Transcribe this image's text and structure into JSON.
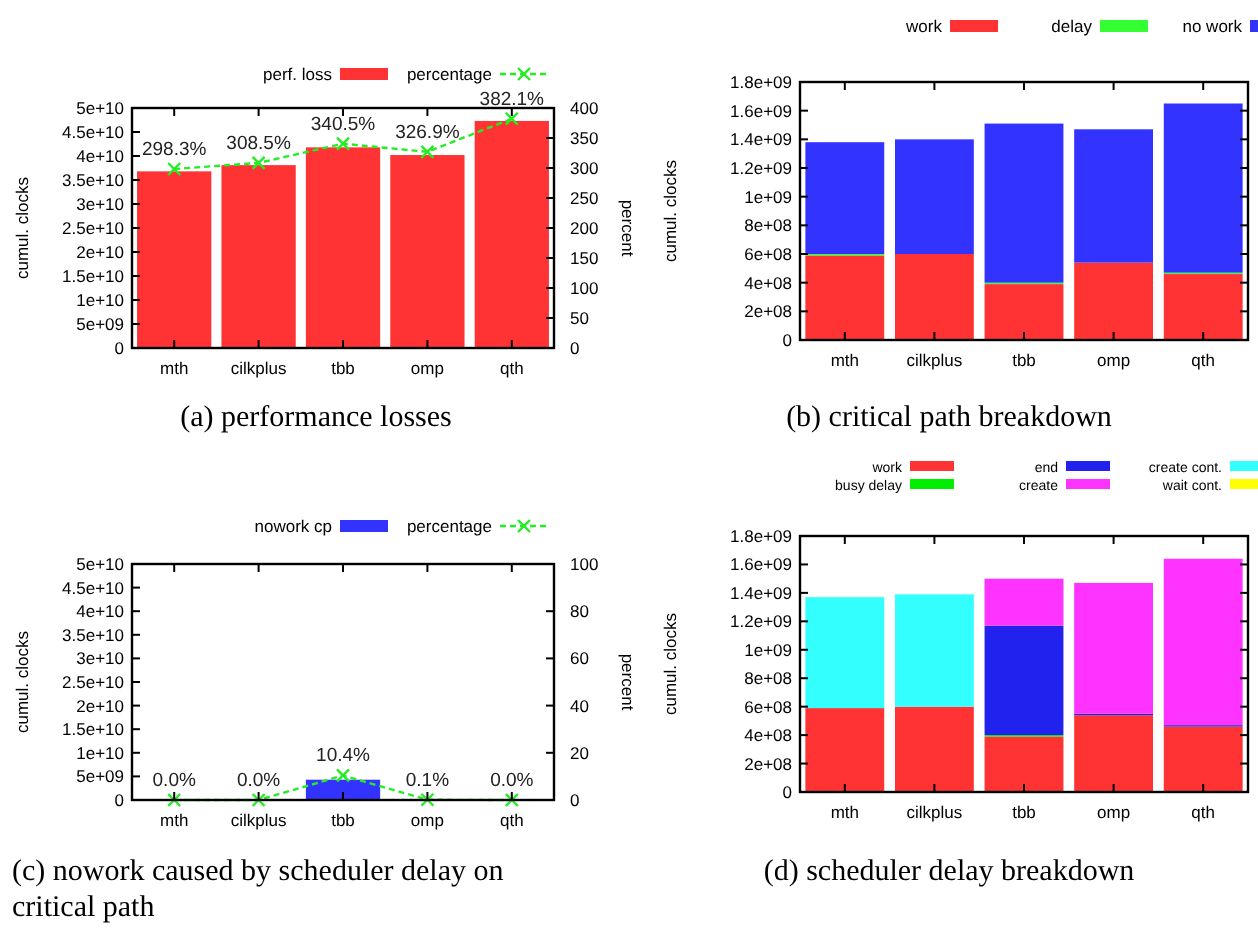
{
  "chart_data": [
    {
      "type": "bar",
      "categories": [
        "mth",
        "cilkplus",
        "tbb",
        "omp",
        "qth"
      ],
      "ylabel": "cumul. clocks",
      "y2label": "percent",
      "legend": "top",
      "annotations": [
        "(a) performance losses"
      ],
      "ylim": [
        0,
        50000000000
      ],
      "yticks": [
        {
          "value": 0,
          "label": "0"
        },
        {
          "value": 5000000000,
          "label": "5e+09"
        },
        {
          "value": 10000000000,
          "label": "1e+10"
        },
        {
          "value": 15000000000,
          "label": "1.5e+10"
        },
        {
          "value": 20000000000,
          "label": "2e+10"
        },
        {
          "value": 25000000000,
          "label": "2.5e+10"
        },
        {
          "value": 30000000000,
          "label": "3e+10"
        },
        {
          "value": 35000000000,
          "label": "3.5e+10"
        },
        {
          "value": 40000000000,
          "label": "4e+10"
        },
        {
          "value": 45000000000,
          "label": "4.5e+10"
        },
        {
          "value": 50000000000,
          "label": "5e+10"
        }
      ],
      "y2lim": [
        0,
        400
      ],
      "y2ticks": [
        0,
        50,
        100,
        150,
        200,
        250,
        300,
        350,
        400
      ],
      "series": [
        {
          "name": "perf. loss",
          "type": "bar",
          "color": "#ff3333",
          "values": [
            36800000000,
            38100000000,
            41800000000,
            40200000000,
            47300000000
          ]
        },
        {
          "name": "percentage",
          "type": "line",
          "axis": "y2",
          "color": "#22ee22",
          "marker": "cross",
          "line_style": "dashed",
          "values": [
            298.3,
            308.5,
            340.5,
            326.9,
            382.1
          ],
          "value_labels": [
            "298.3%",
            "308.5%",
            "340.5%",
            "326.9%",
            "382.1%"
          ]
        }
      ]
    },
    {
      "type": "bar",
      "stacked": true,
      "categories": [
        "mth",
        "cilkplus",
        "tbb",
        "omp",
        "qth"
      ],
      "ylabel": "cumul. clocks",
      "legend": "top",
      "annotations": [
        "(b) critical path breakdown"
      ],
      "ylim": [
        0,
        1800000000
      ],
      "yticks": [
        {
          "value": 0,
          "label": "0"
        },
        {
          "value": 200000000,
          "label": "2e+08"
        },
        {
          "value": 400000000,
          "label": "4e+08"
        },
        {
          "value": 600000000,
          "label": "6e+08"
        },
        {
          "value": 800000000,
          "label": "8e+08"
        },
        {
          "value": 1000000000,
          "label": "1e+09"
        },
        {
          "value": 1200000000,
          "label": "1.2e+09"
        },
        {
          "value": 1400000000,
          "label": "1.4e+09"
        },
        {
          "value": 1600000000,
          "label": "1.6e+09"
        },
        {
          "value": 1800000000,
          "label": "1.8e+09"
        }
      ],
      "series": [
        {
          "name": "work",
          "type": "bar",
          "color": "#ff3333",
          "values": [
            590000000,
            600000000,
            390000000,
            540000000,
            460000000
          ]
        },
        {
          "name": "delay",
          "type": "bar",
          "color": "#33ff33",
          "values": [
            10000000,
            0,
            10000000,
            0,
            10000000
          ]
        },
        {
          "name": "no work",
          "type": "bar",
          "color": "#3333ff",
          "values": [
            780000000,
            800000000,
            1110000000,
            930000000,
            1180000000
          ]
        }
      ]
    },
    {
      "type": "bar",
      "categories": [
        "mth",
        "cilkplus",
        "tbb",
        "omp",
        "qth"
      ],
      "ylabel": "cumul. clocks",
      "y2label": "percent",
      "legend": "top",
      "annotations": [
        "(c) nowork caused by scheduler delay on critical path"
      ],
      "ylim": [
        0,
        50000000000
      ],
      "yticks": [
        {
          "value": 0,
          "label": "0"
        },
        {
          "value": 5000000000,
          "label": "5e+09"
        },
        {
          "value": 10000000000,
          "label": "1e+10"
        },
        {
          "value": 15000000000,
          "label": "1.5e+10"
        },
        {
          "value": 20000000000,
          "label": "2e+10"
        },
        {
          "value": 25000000000,
          "label": "2.5e+10"
        },
        {
          "value": 30000000000,
          "label": "3e+10"
        },
        {
          "value": 35000000000,
          "label": "3.5e+10"
        },
        {
          "value": 40000000000,
          "label": "4e+10"
        },
        {
          "value": 45000000000,
          "label": "4.5e+10"
        },
        {
          "value": 50000000000,
          "label": "5e+10"
        }
      ],
      "y2lim": [
        0,
        100
      ],
      "y2ticks": [
        0,
        20,
        40,
        60,
        80,
        100
      ],
      "series": [
        {
          "name": "nowork cp",
          "type": "bar",
          "color": "#3333ff",
          "values": [
            0,
            0,
            4300000000,
            0,
            0
          ]
        },
        {
          "name": "percentage",
          "type": "line",
          "axis": "y2",
          "color": "#22ee22",
          "marker": "cross",
          "line_style": "dashed",
          "values": [
            0.0,
            0.0,
            10.4,
            0.1,
            0.0
          ],
          "value_labels": [
            "0.0%",
            "0.0%",
            "10.4%",
            "0.1%",
            "0.0%"
          ]
        }
      ]
    },
    {
      "type": "bar",
      "stacked": true,
      "categories": [
        "mth",
        "cilkplus",
        "tbb",
        "omp",
        "qth"
      ],
      "ylabel": "cumul. clocks",
      "legend": "top",
      "annotations": [
        "(d) scheduler delay breakdown"
      ],
      "ylim": [
        0,
        1800000000
      ],
      "yticks": [
        {
          "value": 0,
          "label": "0"
        },
        {
          "value": 200000000,
          "label": "2e+08"
        },
        {
          "value": 400000000,
          "label": "4e+08"
        },
        {
          "value": 600000000,
          "label": "6e+08"
        },
        {
          "value": 800000000,
          "label": "8e+08"
        },
        {
          "value": 1000000000,
          "label": "1e+09"
        },
        {
          "value": 1200000000,
          "label": "1.2e+09"
        },
        {
          "value": 1400000000,
          "label": "1.4e+09"
        },
        {
          "value": 1600000000,
          "label": "1.6e+09"
        },
        {
          "value": 1800000000,
          "label": "1.8e+09"
        }
      ],
      "series": [
        {
          "name": "work",
          "type": "bar",
          "color": "#ff3333",
          "values": [
            590000000,
            600000000,
            390000000,
            540000000,
            460000000
          ]
        },
        {
          "name": "busy delay",
          "type": "bar",
          "color": "#00ee00",
          "values": [
            0,
            0,
            10000000,
            0,
            0
          ]
        },
        {
          "name": "end",
          "type": "bar",
          "color": "#2222ee",
          "values": [
            0,
            0,
            770000000,
            10000000,
            10000000
          ]
        },
        {
          "name": "create",
          "type": "bar",
          "color": "#ff33ff",
          "values": [
            0,
            0,
            330000000,
            920000000,
            1170000000
          ]
        },
        {
          "name": "create cont.",
          "type": "bar",
          "color": "#33ffff",
          "values": [
            780000000,
            790000000,
            0,
            0,
            0
          ]
        },
        {
          "name": "wait cont.",
          "type": "bar",
          "color": "#ffff00",
          "values": [
            0,
            0,
            0,
            0,
            0
          ]
        }
      ]
    }
  ]
}
